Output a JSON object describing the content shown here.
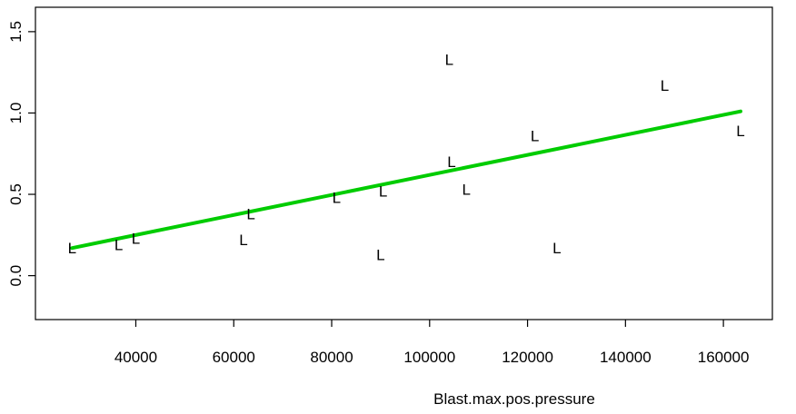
{
  "chart_data": {
    "type": "scatter",
    "xlabel": "Blast.max.pos.pressure",
    "ylabel": "",
    "xlim": [
      19500,
      170000
    ],
    "ylim": [
      -0.27,
      1.65
    ],
    "x_ticks": [
      40000,
      60000,
      80000,
      100000,
      120000,
      140000,
      160000
    ],
    "y_ticks": [
      0.0,
      0.5,
      1.0,
      1.5
    ],
    "x_tick_labels": [
      "40000",
      "60000",
      "80000",
      "100000",
      "120000",
      "140000",
      "160000"
    ],
    "y_tick_labels": [
      "0.0",
      "0.5",
      "1.0",
      "1.5"
    ],
    "marker_symbol": "L",
    "points": [
      {
        "x": 27000,
        "y": 0.17
      },
      {
        "x": 36500,
        "y": 0.19
      },
      {
        "x": 40000,
        "y": 0.23
      },
      {
        "x": 62000,
        "y": 0.22
      },
      {
        "x": 63500,
        "y": 0.38
      },
      {
        "x": 81000,
        "y": 0.48
      },
      {
        "x": 90000,
        "y": 0.13
      },
      {
        "x": 90500,
        "y": 0.52
      },
      {
        "x": 104000,
        "y": 1.33
      },
      {
        "x": 104500,
        "y": 0.7
      },
      {
        "x": 107500,
        "y": 0.53
      },
      {
        "x": 121500,
        "y": 0.86
      },
      {
        "x": 126000,
        "y": 0.17
      },
      {
        "x": 148000,
        "y": 1.17
      },
      {
        "x": 163500,
        "y": 0.89
      }
    ],
    "fit_line": {
      "x": [
        27000,
        163500
      ],
      "y": [
        0.17,
        1.01
      ],
      "color": "#00cc00"
    },
    "grid": false,
    "legend": "none"
  }
}
